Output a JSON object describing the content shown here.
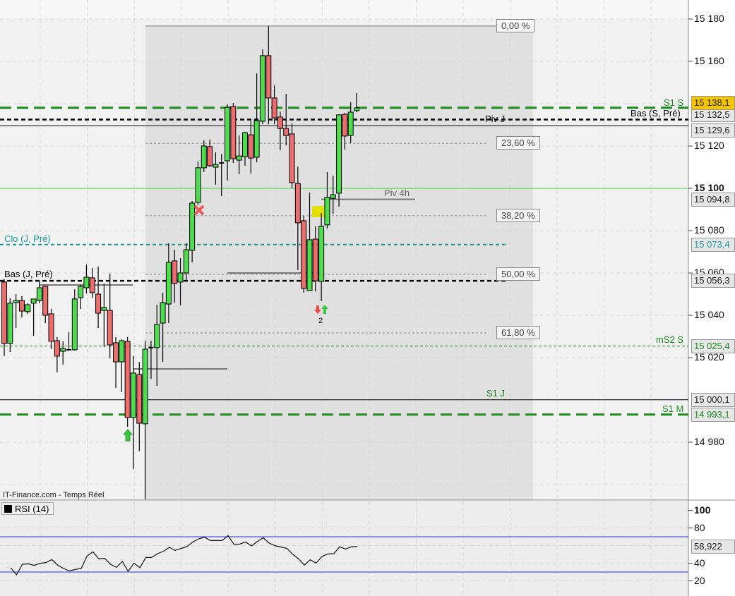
{
  "source_label": "IT-Finance.com - Temps Réel",
  "chart_data": {
    "type": "candlestick",
    "price_axis": {
      "range": [
        14953,
        15182
      ],
      "ticks": [
        "15 180",
        "15 160",
        "15 120",
        "15 100",
        "15 080",
        "15 060",
        "15 040",
        "15 020",
        "14 980"
      ],
      "bold_tick": "15 100"
    },
    "candles": [
      [
        15055.7,
        15057,
        15020.7,
        15026.7
      ],
      [
        15026.7,
        15048,
        15022.7,
        15045.7
      ],
      [
        15046,
        15050,
        15034,
        15047
      ],
      [
        15047,
        15049,
        15039,
        15042
      ],
      [
        15041.7,
        15045.7,
        15040.7,
        15045
      ],
      [
        15045.7,
        15047.7,
        15030.3,
        15047.7
      ],
      [
        15047,
        15056,
        15045.7,
        15053
      ],
      [
        15053.7,
        15054,
        15036.3,
        15040
      ],
      [
        15040.7,
        15043,
        15024,
        15027.7
      ],
      [
        15028,
        15029.7,
        15013,
        15020.7
      ],
      [
        15023,
        15027.7,
        15016.7,
        15024.3
      ],
      [
        15023.7,
        15032,
        15023.3,
        15023.7
      ],
      [
        15023.7,
        15052.3,
        15023.3,
        15047.7
      ],
      [
        15048.3,
        15054.3,
        15043,
        15053.7
      ],
      [
        15053,
        15064,
        15050.3,
        15058
      ],
      [
        15057.7,
        15062.3,
        15048.3,
        15050.7
      ],
      [
        15050,
        15063,
        15034,
        15041
      ],
      [
        15042.3,
        15055,
        15025,
        15043.7
      ],
      [
        15042.3,
        15059.7,
        15019.7,
        15026
      ],
      [
        15027,
        15029.7,
        15005.7,
        15018
      ],
      [
        15018,
        15028.7,
        15003.7,
        15028
      ],
      [
        15027.7,
        15029.7,
        14987.3,
        14991.7
      ],
      [
        14991.7,
        15020.7,
        14967.3,
        15012.7
      ],
      [
        15012,
        15018,
        14975.7,
        14989
      ],
      [
        14988.7,
        15028,
        14953,
        15024
      ],
      [
        15024.7,
        15028,
        15010,
        15024.7
      ],
      [
        15024.7,
        15045,
        15006.7,
        15035.7
      ],
      [
        15036.3,
        15050.7,
        15018,
        15046
      ],
      [
        15045.3,
        15074,
        15036.3,
        15065
      ],
      [
        15065.7,
        15071,
        15046,
        15055
      ],
      [
        15055.7,
        15067,
        15044.7,
        15060
      ],
      [
        15060,
        15074,
        15056,
        15071
      ],
      [
        15070.7,
        15094,
        15065,
        15093
      ],
      [
        15093.3,
        15112.7,
        15092,
        15109.7
      ],
      [
        15109.7,
        15122.7,
        15107.7,
        15120
      ],
      [
        15119.7,
        15123,
        15110,
        15110.7
      ],
      [
        15110,
        15117,
        15101.7,
        15111.3
      ],
      [
        15112,
        15116.3,
        15096.3,
        15112
      ],
      [
        15113,
        15139.7,
        15103.7,
        15138.3
      ],
      [
        15138.7,
        15140.3,
        15112,
        15114
      ],
      [
        15113.3,
        15125,
        15106.7,
        15115.3
      ],
      [
        15115,
        15126.7,
        15110.7,
        15126.3
      ],
      [
        15125.3,
        15131.7,
        15107,
        15114.3
      ],
      [
        15114.7,
        15154.3,
        15112.3,
        15132
      ],
      [
        15131.7,
        15165.7,
        15130.3,
        15162.7
      ],
      [
        15162.7,
        15176.7,
        15130.3,
        15142.7
      ],
      [
        15142.7,
        15148.7,
        15130.3,
        15133.3
      ],
      [
        15133.7,
        15136.3,
        15118,
        15128.3
      ],
      [
        15128.3,
        15144.7,
        15120.3,
        15125
      ],
      [
        15125.7,
        15130.7,
        15100,
        15102.7
      ],
      [
        15102.3,
        15110.3,
        15061.3,
        15083.7
      ],
      [
        15084.7,
        15087,
        15050.7,
        15052.7
      ],
      [
        15051.7,
        15098,
        15051.7,
        15075.7
      ],
      [
        15076,
        15082,
        15051.3,
        15056.3
      ],
      [
        15056,
        15088.3,
        15046.7,
        15082
      ],
      [
        15082.7,
        15107.7,
        15081,
        15095.7
      ],
      [
        15095.3,
        15106,
        15088,
        15097
      ],
      [
        15097.7,
        15135,
        15091.3,
        15134.7
      ],
      [
        15135,
        15135.7,
        15118.3,
        15124.7
      ],
      [
        15125,
        15140.7,
        15121.3,
        15136
      ],
      [
        15136.7,
        15145,
        15136,
        15138
      ]
    ],
    "levels": [
      {
        "name": "S1 S",
        "price": 15138.1,
        "axis_label": "15 138,1",
        "color": "#1a8a1a",
        "style": "dash-thick"
      },
      {
        "name": "Bas (S, Pré)",
        "price": 15132.5,
        "axis_label": "15 132,5",
        "color": "#000000",
        "style": "dash-black"
      },
      {
        "name": "Piv J",
        "price": 15129.6,
        "axis_label": "15 129,6",
        "color": "#000000",
        "style": "solid"
      },
      {
        "name": "Piv 4h",
        "price": 15094.8,
        "axis_label": "15 094,8",
        "color": "#777777",
        "style": "solid-grey"
      },
      {
        "name": "Clo (J, Pré)",
        "price": 15073.4,
        "axis_label": "15 073,4",
        "color": "#1a9a9a",
        "style": "dash-teal"
      },
      {
        "name": "Bas (J, Pré)",
        "price": 15056.3,
        "axis_label": "15 056,3",
        "color": "#000000",
        "style": "dash-black"
      },
      {
        "name": "mS2 S",
        "price": 15025.4,
        "axis_label": "15 025,4",
        "color": "#1a8a1a",
        "style": "dash-thin"
      },
      {
        "name": "S1 J",
        "price": 15000.1,
        "axis_label": "15 000,1",
        "color": "#000000",
        "style": "solid"
      },
      {
        "name": "S1 M",
        "price": 14993.1,
        "axis_label": "14 993,1",
        "color": "#1a8a1a",
        "style": "dash-thick"
      }
    ],
    "fibonacci": {
      "high": 15176.7,
      "low": 14942,
      "levels": [
        {
          "label": "0,00 %",
          "ratio": 0
        },
        {
          "label": "23,60 %",
          "ratio": 0.236
        },
        {
          "label": "38,20 %",
          "ratio": 0.382
        },
        {
          "label": "50,00 %",
          "ratio": 0.5
        },
        {
          "label": "61,80 %",
          "ratio": 0.618
        }
      ]
    },
    "signal_count_label": "2",
    "colors": {
      "up": "#4fdc4f",
      "down": "#ea6e6e",
      "fib_zone": "#e0e0e0",
      "highlight": "#f5c400"
    },
    "rsi": {
      "title": "RSI (14)",
      "range": [
        0,
        100
      ],
      "ticks": [
        "100",
        "80",
        "40",
        "20"
      ],
      "bounds": [
        30,
        70
      ],
      "last": "58,922",
      "bound_color": "#2233dd",
      "values": [
        34.8,
        26.8,
        38.8,
        39.3,
        37.5,
        39.9,
        40.7,
        44.1,
        37.9,
        34,
        31.3,
        32.9,
        34,
        48.1,
        52.9,
        44.9,
        45.5,
        38.8,
        35.3,
        42,
        30.8,
        40.1,
        34.8,
        46.5,
        46.5,
        50.8,
        53.5,
        58,
        54.5,
        56.7,
        58.8,
        64.1,
        67.6,
        69.5,
        65.7,
        65.7,
        65.7,
        71.3,
        61.5,
        61.7,
        64.1,
        59.6,
        64.6,
        68.9,
        62.8,
        59.9,
        58.3,
        56.9,
        50.3,
        44.9,
        37.9,
        43.9,
        40.1,
        47.6,
        50.5,
        50.8,
        58.6,
        56.1,
        58.6,
        58.9
      ]
    }
  }
}
